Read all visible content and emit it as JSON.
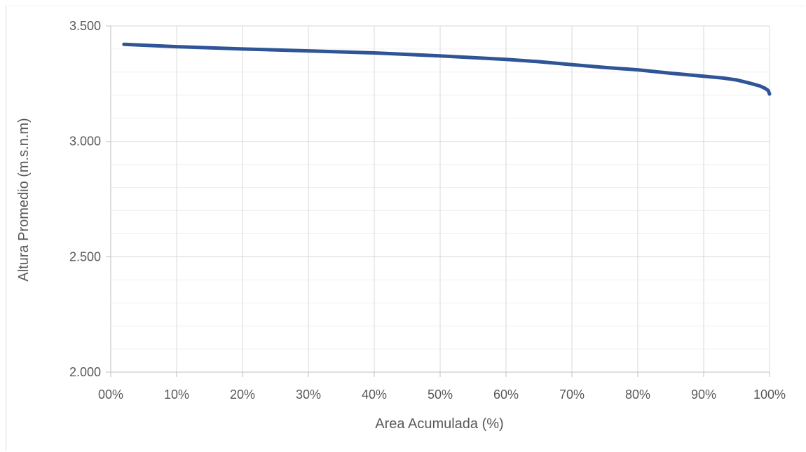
{
  "chart_data": {
    "type": "line",
    "title": "",
    "xlabel": "Area Acumulada (%)",
    "ylabel": "Altura Promedio (m.s.n.m)",
    "xlim": [
      0,
      100
    ],
    "ylim": [
      2000,
      3500
    ],
    "x_ticks": [
      0,
      10,
      20,
      30,
      40,
      50,
      60,
      70,
      80,
      90,
      100
    ],
    "x_tick_labels": [
      "00%",
      "10%",
      "20%",
      "30%",
      "40%",
      "50%",
      "60%",
      "70%",
      "80%",
      "90%",
      "100%"
    ],
    "y_ticks": [
      2000,
      2500,
      3000,
      3500
    ],
    "y_tick_labels": [
      "2.000",
      "2.500",
      "3.000",
      "3.500"
    ],
    "grid": true,
    "legend": "none",
    "series": [
      {
        "color": "#2f5597",
        "x": [
          2,
          10,
          20,
          30,
          40,
          50,
          60,
          65,
          70,
          75,
          80,
          85,
          90,
          93,
          95,
          97,
          98.5,
          99.3,
          99.8,
          100
        ],
        "y": [
          3420,
          3410,
          3400,
          3392,
          3383,
          3370,
          3355,
          3345,
          3332,
          3320,
          3310,
          3295,
          3282,
          3274,
          3266,
          3252,
          3240,
          3230,
          3220,
          3205
        ]
      }
    ]
  }
}
